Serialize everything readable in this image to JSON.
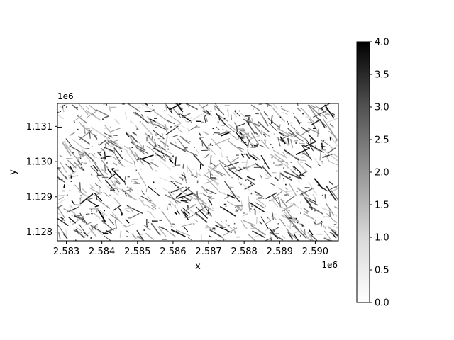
{
  "chart_data": {
    "type": "heatmap",
    "title": "",
    "xlabel": "x",
    "ylabel": "y",
    "x_offset_label": "1e6",
    "y_offset_label": "1e6",
    "x_range": [
      2.58275,
      2.59065
    ],
    "y_range": [
      1.12775,
      1.13165
    ],
    "x_ticks": [
      {
        "value": 2.583,
        "label": "2.583"
      },
      {
        "value": 2.584,
        "label": "2.584"
      },
      {
        "value": 2.585,
        "label": "2.585"
      },
      {
        "value": 2.586,
        "label": "2.586"
      },
      {
        "value": 2.587,
        "label": "2.587"
      },
      {
        "value": 2.588,
        "label": "2.588"
      },
      {
        "value": 2.589,
        "label": "2.589"
      },
      {
        "value": 2.59,
        "label": "2.590"
      }
    ],
    "y_ticks": [
      {
        "value": 1.128,
        "label": "1.128"
      },
      {
        "value": 1.129,
        "label": "1.129"
      },
      {
        "value": 1.13,
        "label": "1.130"
      },
      {
        "value": 1.131,
        "label": "1.131"
      }
    ],
    "colorbar": {
      "cmap": "Greys",
      "min": 0.0,
      "max": 4.0,
      "ticks": [
        {
          "value": 0.0,
          "label": "0.0"
        },
        {
          "value": 0.5,
          "label": "0.5"
        },
        {
          "value": 1.0,
          "label": "1.0"
        },
        {
          "value": 1.5,
          "label": "1.5"
        },
        {
          "value": 2.0,
          "label": "2.0"
        },
        {
          "value": 2.5,
          "label": "2.5"
        },
        {
          "value": 3.0,
          "label": "3.0"
        },
        {
          "value": 3.5,
          "label": "3.5"
        },
        {
          "value": 4.0,
          "label": "4.0"
        }
      ]
    },
    "grid": false,
    "dominant_orientation": "diagonal NW-SE linear features on white background"
  }
}
